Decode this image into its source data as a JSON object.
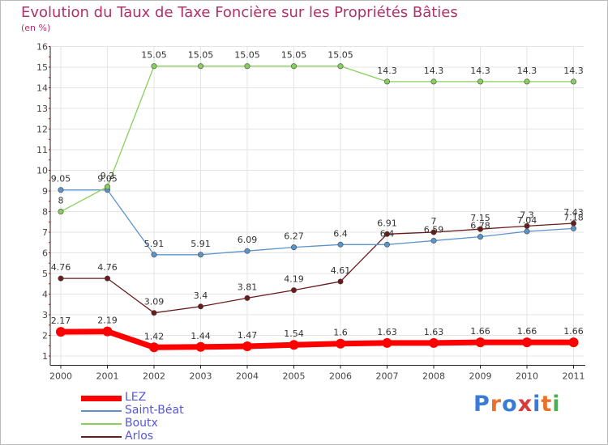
{
  "chart_data": {
    "type": "line",
    "title": "Evolution du Taux de Taxe Foncière sur les Propriétés Bâties",
    "ylabel": "(en %)",
    "xlabel": "",
    "categories": [
      "2000",
      "2001",
      "2002",
      "2003",
      "2004",
      "2005",
      "2006",
      "2007",
      "2008",
      "2009",
      "2010",
      "2011"
    ],
    "yticks": [
      "1",
      "2",
      "3",
      "4",
      "5",
      "6",
      "7",
      "8",
      "9",
      "10",
      "11",
      "12",
      "13",
      "14",
      "15",
      "16"
    ],
    "ylim": [
      0.55,
      16
    ],
    "series": [
      {
        "name": "Arlos",
        "color": "#6b1a1a",
        "values": [
          4.76,
          4.76,
          3.09,
          3.4,
          3.81,
          4.19,
          4.61,
          6.91,
          7,
          7.15,
          7.3,
          7.43
        ],
        "labels": [
          "4.76",
          "4.76",
          "3.09",
          "3.4",
          "3.81",
          "4.19",
          "4.61",
          "6.91",
          "7",
          "7.15",
          "7.3",
          "7.43"
        ]
      },
      {
        "name": "Saint-Béat",
        "color": "#5b93cc",
        "values": [
          9.05,
          9.05,
          5.91,
          5.91,
          6.09,
          6.27,
          6.4,
          6.4,
          6.59,
          6.78,
          7.04,
          7.18
        ],
        "labels": [
          "9.05",
          "9.05",
          "5.91",
          "5.91",
          "6.09",
          "6.27",
          "6.4",
          "6.4",
          "6.59",
          "6.78",
          "7.04",
          "7.18"
        ]
      },
      {
        "name": "Boutx",
        "color": "#88d05a",
        "values": [
          8,
          9.2,
          15.05,
          15.05,
          15.05,
          15.05,
          15.05,
          14.3,
          14.3,
          14.3,
          14.3,
          14.3
        ],
        "labels": [
          "8",
          "9.2",
          "15.05",
          "15.05",
          "15.05",
          "15.05",
          "15.05",
          "14.3",
          "14.3",
          "14.3",
          "14.3",
          "14.3"
        ]
      },
      {
        "name": "LEZ",
        "color": "#ff0000",
        "values": [
          2.17,
          2.19,
          1.42,
          1.44,
          1.47,
          1.54,
          1.6,
          1.63,
          1.63,
          1.66,
          1.66,
          1.66
        ],
        "labels": [
          "2.17",
          "2.19",
          "1.42",
          "1.44",
          "1.47",
          "1.54",
          "1.6",
          "1.63",
          "1.63",
          "1.66",
          "1.66",
          "1.66"
        ]
      }
    ],
    "legend": [
      {
        "name": "LEZ",
        "color": "#ff0000"
      },
      {
        "name": "Saint-Béat",
        "color": "#5b93cc"
      },
      {
        "name": "Boutx",
        "color": "#88d05a"
      },
      {
        "name": "Arlos",
        "color": "#6b1a1a"
      }
    ]
  },
  "logo": {
    "text": "Proxiti",
    "colors": [
      "#3a7bd5",
      "#e8732a",
      "#3a7bd5",
      "#d63a3a",
      "#3a7bd5",
      "#e8732a",
      "#4caf50"
    ]
  }
}
